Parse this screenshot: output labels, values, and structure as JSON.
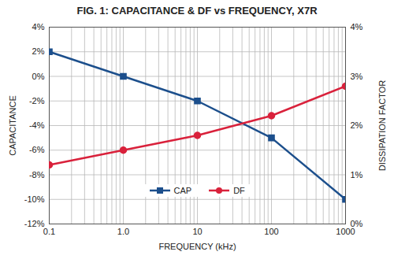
{
  "chart_data": {
    "type": "line",
    "title": "FIG. 1: CAPACITANCE & DF vs FREQUENCY, X7R",
    "x_label": "FREQUENCY (kHz)",
    "y_label": "CAPACITANCE",
    "y2_label": "DISSIPATION FACTOR",
    "x": [
      0.1,
      1,
      10,
      100,
      1000
    ],
    "log": "x",
    "xlim": [
      0.1,
      1000
    ],
    "xticks": [
      0.1,
      {
        "value": 1,
        "label": "1.0"
      },
      10,
      100,
      1000
    ],
    "ylim": [
      -12,
      4
    ],
    "yticks": [
      {
        "value": -12,
        "label": "-12%"
      },
      {
        "value": -10,
        "label": "-10%"
      },
      {
        "value": -8,
        "label": "-8%"
      },
      {
        "value": -6,
        "label": "-6%"
      },
      {
        "value": -4,
        "label": "-4%"
      },
      {
        "value": -2,
        "label": "-2%"
      },
      {
        "value": 0,
        "label": "0%"
      },
      {
        "value": 2,
        "label": "2%"
      },
      {
        "value": 4,
        "label": "4%"
      }
    ],
    "y2lim": [
      0,
      4
    ],
    "y2ticks": [
      {
        "value": 0,
        "label": "0%"
      },
      {
        "value": 1,
        "label": "1%"
      },
      {
        "value": 2,
        "label": "2%"
      },
      {
        "value": 3,
        "label": "3%"
      },
      {
        "value": 4,
        "label": "4%"
      }
    ],
    "grid": true,
    "legend": "bottom",
    "series": [
      {
        "name": "CAP",
        "color": "#1c4f8c",
        "marker": "square",
        "values": [
          2,
          0,
          -2,
          -5,
          -10
        ]
      },
      {
        "name": "DF",
        "color": "#d9213b",
        "marker": "circle",
        "axis": "y2",
        "values": [
          1.2,
          1.5,
          1.8,
          2.2,
          2.8
        ]
      }
    ]
  }
}
